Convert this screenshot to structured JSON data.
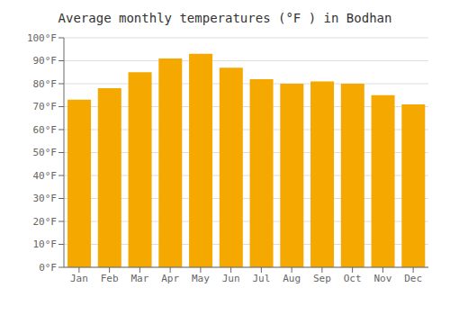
{
  "chart_data": {
    "type": "bar",
    "title": "Average monthly temperatures (°F ) in Bodhan",
    "categories": [
      "Jan",
      "Feb",
      "Mar",
      "Apr",
      "May",
      "Jun",
      "Jul",
      "Aug",
      "Sep",
      "Oct",
      "Nov",
      "Dec"
    ],
    "values": [
      73,
      78,
      85,
      91,
      93,
      87,
      82,
      80,
      81,
      80,
      75,
      71
    ],
    "color": "#F5A800",
    "ylim": [
      0,
      100
    ],
    "yticks": [
      {
        "value": 0,
        "label": "0°F"
      },
      {
        "value": 10,
        "label": "10°F"
      },
      {
        "value": 20,
        "label": "20°F"
      },
      {
        "value": 30,
        "label": "30°F"
      },
      {
        "value": 40,
        "label": "40°F"
      },
      {
        "value": 50,
        "label": "50°F"
      },
      {
        "value": 60,
        "label": "60°F"
      },
      {
        "value": 70,
        "label": "70°F"
      },
      {
        "value": 80,
        "label": "80°F"
      },
      {
        "value": 90,
        "label": "90°F"
      },
      {
        "value": 100,
        "label": "100°F"
      }
    ],
    "grid": true
  }
}
